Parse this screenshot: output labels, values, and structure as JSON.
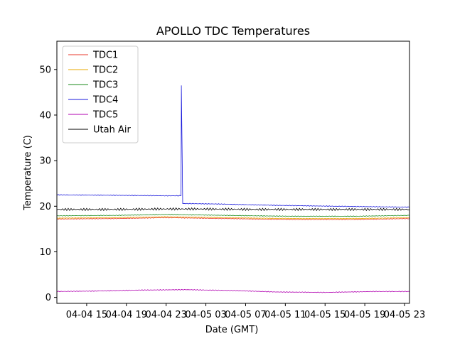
{
  "chart_data": {
    "type": "line",
    "title": "APOLLO TDC Temperatures",
    "xlabel": "Date (GMT)",
    "ylabel": "Temperature (C)",
    "xlim": [
      "2024-04-04 12:00",
      "2024-04-05 23:30"
    ],
    "ylim": [
      -1.3,
      56.2
    ],
    "xticks": [
      {
        "label": "04-04 15",
        "t": "2024-04-04 15:00"
      },
      {
        "label": "04-04 19",
        "t": "2024-04-04 19:00"
      },
      {
        "label": "04-04 23",
        "t": "2024-04-04 23:00"
      },
      {
        "label": "04-05 03",
        "t": "2024-04-05 03:00"
      },
      {
        "label": "04-05 07",
        "t": "2024-04-05 07:00"
      },
      {
        "label": "04-05 11",
        "t": "2024-04-05 11:00"
      },
      {
        "label": "04-05 15",
        "t": "2024-04-05 15:00"
      },
      {
        "label": "04-05 19",
        "t": "2024-04-05 19:00"
      },
      {
        "label": "04-05 23",
        "t": "2024-04-05 23:00"
      }
    ],
    "yticks": [
      0,
      10,
      20,
      30,
      40,
      50
    ],
    "grid": false,
    "legend": "top-left",
    "series": [
      {
        "name": "TDC1",
        "color": "#e8382e",
        "x": [
          "2024-04-04 12:00",
          "2024-04-04 18:00",
          "2024-04-04 23:00",
          "2024-04-05 02:00",
          "2024-04-05 08:00",
          "2024-04-05 12:00",
          "2024-04-05 18:00",
          "2024-04-05 23:30"
        ],
        "y": [
          17.2,
          17.3,
          17.5,
          17.4,
          17.2,
          17.1,
          17.1,
          17.3
        ]
      },
      {
        "name": "TDC2",
        "color": "#e8a800",
        "x": [
          "2024-04-04 12:00",
          "2024-04-04 18:00",
          "2024-04-04 23:00",
          "2024-04-05 02:00",
          "2024-04-05 08:00",
          "2024-04-05 12:00",
          "2024-04-05 18:00",
          "2024-04-05 23:30"
        ],
        "y": [
          17.4,
          17.5,
          17.7,
          17.6,
          17.4,
          17.3,
          17.3,
          17.5
        ]
      },
      {
        "name": "TDC3",
        "color": "#1a8a1a",
        "x": [
          "2024-04-04 12:00",
          "2024-04-04 18:00",
          "2024-04-04 23:00",
          "2024-04-05 02:00",
          "2024-04-05 08:00",
          "2024-04-05 12:00",
          "2024-04-05 18:00",
          "2024-04-05 23:30"
        ],
        "y": [
          17.9,
          18.0,
          18.2,
          18.1,
          17.9,
          17.8,
          17.8,
          18.0
        ]
      },
      {
        "name": "TDC4",
        "color": "#1a1adc",
        "x": [
          "2024-04-04 12:00",
          "2024-04-04 18:00",
          "2024-04-04 23:00",
          "2024-04-05 00:30",
          "2024-04-05 00:32",
          "2024-04-05 00:40",
          "2024-04-05 04:00",
          "2024-04-05 10:00",
          "2024-04-05 16:00",
          "2024-04-05 23:30"
        ],
        "y": [
          22.5,
          22.4,
          22.3,
          22.3,
          46.5,
          20.6,
          20.5,
          20.2,
          20.0,
          19.8
        ]
      },
      {
        "name": "TDC5",
        "color": "#b000b0",
        "x": [
          "2024-04-04 12:00",
          "2024-04-04 16:00",
          "2024-04-04 20:00",
          "2024-04-05 01:00",
          "2024-04-05 06:00",
          "2024-04-05 10:00",
          "2024-04-05 15:00",
          "2024-04-05 20:00",
          "2024-04-05 23:30"
        ],
        "y": [
          1.3,
          1.4,
          1.6,
          1.7,
          1.5,
          1.2,
          1.1,
          1.3,
          1.3
        ]
      },
      {
        "name": "Utah Air",
        "color": "#000000",
        "x": [
          "2024-04-04 12:00",
          "2024-04-04 18:00",
          "2024-04-04 23:00",
          "2024-04-05 02:00",
          "2024-04-05 08:00",
          "2024-04-05 12:00",
          "2024-04-05 18:00",
          "2024-04-05 23:30"
        ],
        "y": [
          19.3,
          19.3,
          19.4,
          19.4,
          19.3,
          19.3,
          19.3,
          19.3
        ]
      }
    ]
  }
}
